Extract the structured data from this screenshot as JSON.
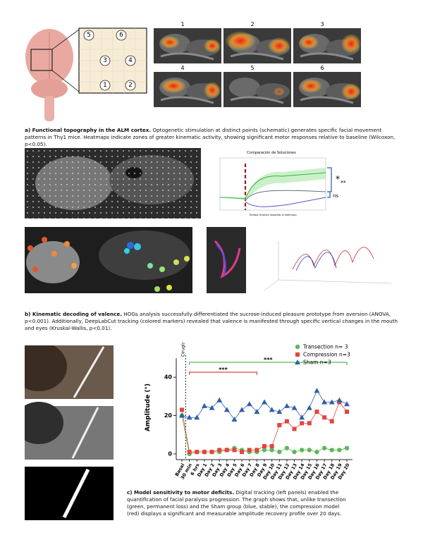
{
  "panel_a": {
    "schematic_points": [
      "5",
      "6",
      "3",
      "4",
      "1",
      "2"
    ],
    "heatmap_labels": [
      "1",
      "2",
      "3",
      "4",
      "5",
      "6"
    ],
    "caption": {
      "title": "a) Functional topography in the ALM cortex.",
      "text": "Optogenetic stimulation at distinct points (schematic) generates specific facial movement patterns in Thy1 mice. Heatmaps indicate zones of greater kinematic activity, showing significant motor responses relative to baseline (Wilcoxon, p<0.05)."
    }
  },
  "panel_b": {
    "plot_title": "Comparación de Soluciones",
    "x_label": "Tiempo (frames respecto al estímulo)",
    "significance": [
      "*",
      "**",
      "ns"
    ],
    "caption": {
      "title": "b) Kinematic decoding of valence.",
      "text": "HOGs analysis successfully differentiated the sucrose-induced pleasure prototype from aversion (ANOVA, p<0.001). Additionally, DeepLabCut tracking (colored markers) revealed that valence is manifested through specific vertical changes in the mouth and eyes (Kruskal-Wallis, p<0.01)."
    }
  },
  "panel_c": {
    "caption": {
      "title": "c) Model sensitivity to motor deficits.",
      "text": "Digital tracking (left panels) enabled the quantification of facial paralysis progression. The graph shows that, unlike transection (green, permanent loss) and the Sham group (blue, stable), the compression model (red) displays a significant and measurable amplitude recovery profile over 20 days."
    }
  },
  "chart_data": {
    "type": "line",
    "y_label": "Amplitude (°)",
    "event_label": "Cirugía",
    "categories": [
      "Basal",
      "30 min",
      "6 hrs",
      "Day 1",
      "Day 2",
      "Day 3",
      "Day 4",
      "Day 5",
      "Day 6",
      "Day 7",
      "Day 8",
      "Day 9",
      "Day 10",
      "Day 11",
      "Day 12",
      "Day 13",
      "Day 14",
      "Day 15",
      "Day 16",
      "Day 17",
      "Day 18",
      "Day 19",
      "Day 20"
    ],
    "ylim": [
      -3,
      50
    ],
    "yticks": [
      0,
      20,
      40
    ],
    "legend": "top-right",
    "series": [
      {
        "name": "Transection n= 3",
        "color": "#5cb85c",
        "marker": "circle",
        "values": [
          20,
          0,
          1,
          1,
          1,
          1,
          2,
          3,
          2,
          1,
          1,
          2,
          2,
          1,
          3,
          1,
          2,
          2,
          1,
          3,
          2,
          2,
          3
        ]
      },
      {
        "name": "Compression n=3",
        "color": "#e0463c",
        "marker": "square",
        "values": [
          23,
          1,
          1,
          1,
          1,
          2,
          2,
          2,
          1,
          2,
          2,
          4,
          4,
          15,
          17,
          13,
          16,
          16,
          22,
          19,
          17,
          27,
          22
        ]
      },
      {
        "name": "Sham n=3",
        "color": "#2f5fa8",
        "marker": "triangle",
        "values": [
          20,
          19,
          19,
          25,
          24,
          28,
          23,
          18,
          23,
          26,
          22,
          27,
          23,
          22,
          25,
          24,
          19,
          24,
          33,
          27,
          27,
          28,
          26
        ]
      }
    ],
    "annotations": [
      {
        "text": "***",
        "from": "30 min",
        "to": "Day 20",
        "color": "#5cb85c"
      },
      {
        "text": "***",
        "from": "30 min",
        "to": "Day 8",
        "color": "#e0463c"
      }
    ]
  }
}
